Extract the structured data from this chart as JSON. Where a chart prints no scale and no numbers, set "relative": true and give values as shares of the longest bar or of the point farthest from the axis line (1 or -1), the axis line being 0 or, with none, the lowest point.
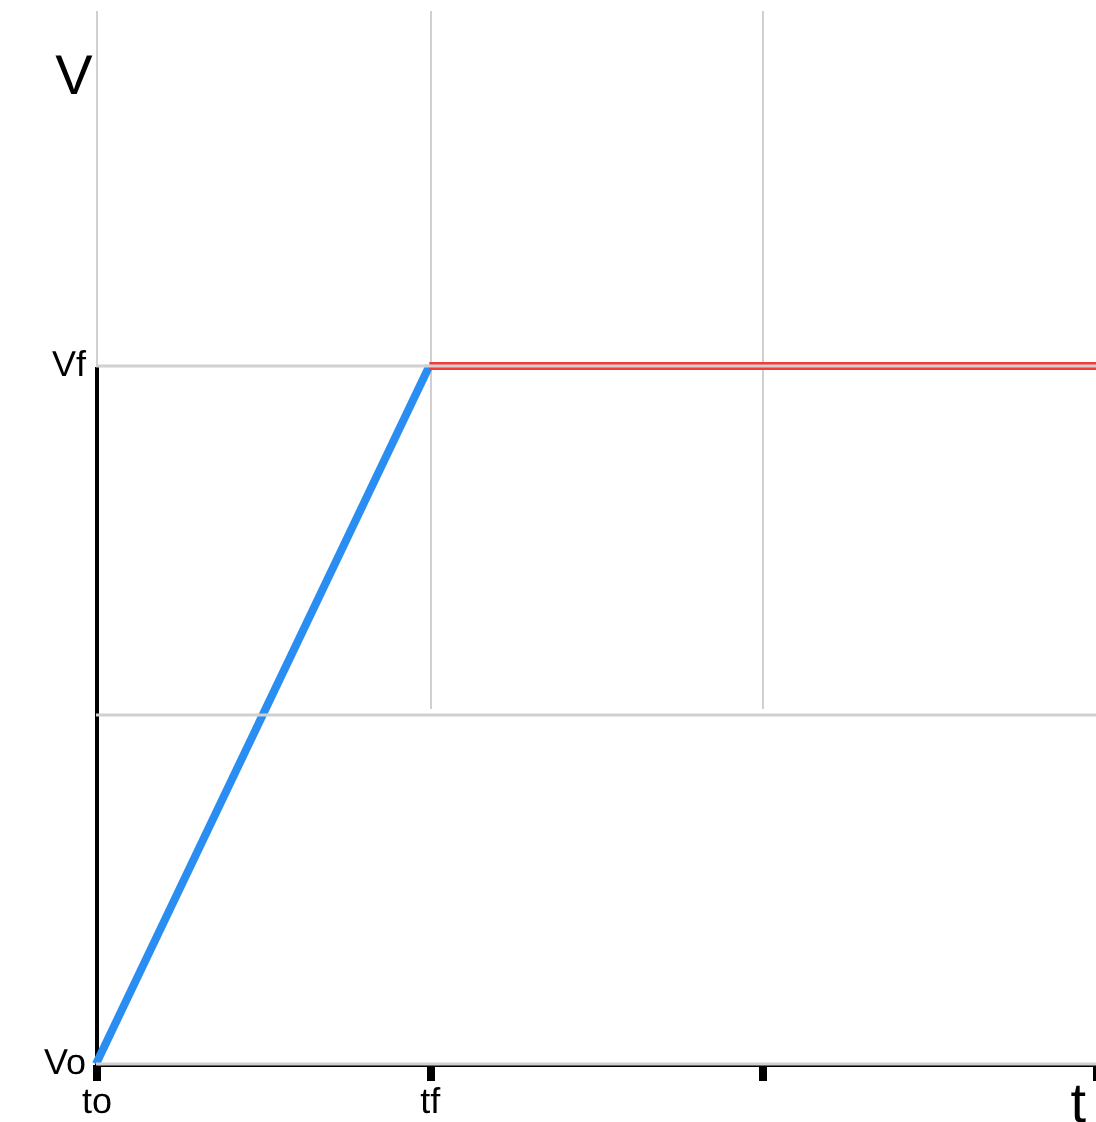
{
  "chart_data": {
    "type": "line",
    "xlabel": "t",
    "ylabel": "V",
    "relative": true,
    "categories": [
      "to",
      "tf",
      null,
      null
    ],
    "grid": "x",
    "ref_lines": [
      {
        "axis": "y",
        "value": 0,
        "label": "Vo",
        "color": "#d0d0d0"
      },
      {
        "axis": "y",
        "value": 0.5,
        "color": "#d0d0d0"
      },
      {
        "axis": "y",
        "value": 1,
        "label": "Vf",
        "color": "#d0d0d0"
      }
    ],
    "series": [
      {
        "color": "#2a8df2",
        "values": [
          0,
          1,
          null,
          null
        ]
      },
      {
        "color": "#f23c3c",
        "values": [
          null,
          1,
          1,
          1
        ]
      }
    ]
  }
}
